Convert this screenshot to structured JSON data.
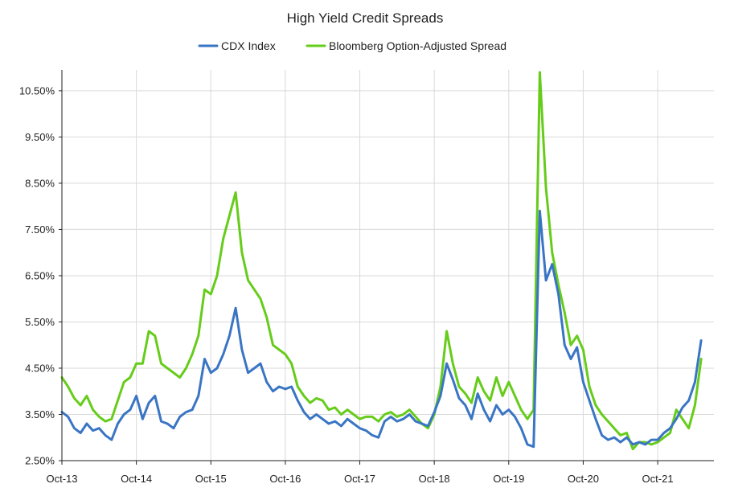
{
  "chart_data": {
    "type": "line",
    "title": "High Yield Credit Spreads",
    "xlabel": "",
    "ylabel": "",
    "ylim": [
      2.5,
      10.95
    ],
    "y_ticks": [
      2.5,
      3.5,
      4.5,
      5.5,
      6.5,
      7.5,
      8.5,
      9.5,
      10.5
    ],
    "y_tick_labels": [
      "2.50%",
      "3.50%",
      "4.50%",
      "5.50%",
      "6.50%",
      "7.50%",
      "8.50%",
      "9.50%",
      "10.50%"
    ],
    "x_tick_labels": [
      "Oct-13",
      "Oct-14",
      "Oct-15",
      "Oct-16",
      "Oct-17",
      "Oct-18",
      "Oct-19",
      "Oct-20",
      "Oct-21"
    ],
    "x_tick_dates": [
      "2013-10",
      "2014-10",
      "2015-10",
      "2016-10",
      "2017-10",
      "2018-10",
      "2019-10",
      "2020-10",
      "2021-10"
    ],
    "x_range": [
      "2013-10",
      "2022-05"
    ],
    "grid": true,
    "legend": "top",
    "series": [
      {
        "name": "CDX Index",
        "color": "#3a75c4",
        "points": [
          [
            "2013-10",
            3.55
          ],
          [
            "2013-11",
            3.45
          ],
          [
            "2013-12",
            3.2
          ],
          [
            "2014-01",
            3.1
          ],
          [
            "2014-02",
            3.3
          ],
          [
            "2014-03",
            3.15
          ],
          [
            "2014-04",
            3.2
          ],
          [
            "2014-05",
            3.05
          ],
          [
            "2014-06",
            2.95
          ],
          [
            "2014-07",
            3.3
          ],
          [
            "2014-08",
            3.5
          ],
          [
            "2014-09",
            3.6
          ],
          [
            "2014-10",
            3.9
          ],
          [
            "2014-11",
            3.4
          ],
          [
            "2014-12",
            3.75
          ],
          [
            "2015-01",
            3.9
          ],
          [
            "2015-02",
            3.35
          ],
          [
            "2015-03",
            3.3
          ],
          [
            "2015-04",
            3.2
          ],
          [
            "2015-05",
            3.45
          ],
          [
            "2015-06",
            3.55
          ],
          [
            "2015-07",
            3.6
          ],
          [
            "2015-08",
            3.9
          ],
          [
            "2015-09",
            4.7
          ],
          [
            "2015-10",
            4.4
          ],
          [
            "2015-11",
            4.5
          ],
          [
            "2015-12",
            4.8
          ],
          [
            "2016-01",
            5.2
          ],
          [
            "2016-02",
            5.8
          ],
          [
            "2016-03",
            4.9
          ],
          [
            "2016-04",
            4.4
          ],
          [
            "2016-05",
            4.5
          ],
          [
            "2016-06",
            4.6
          ],
          [
            "2016-07",
            4.2
          ],
          [
            "2016-08",
            4.0
          ],
          [
            "2016-09",
            4.1
          ],
          [
            "2016-10",
            4.05
          ],
          [
            "2016-11",
            4.1
          ],
          [
            "2016-12",
            3.8
          ],
          [
            "2017-01",
            3.55
          ],
          [
            "2017-02",
            3.4
          ],
          [
            "2017-03",
            3.5
          ],
          [
            "2017-04",
            3.4
          ],
          [
            "2017-05",
            3.3
          ],
          [
            "2017-06",
            3.35
          ],
          [
            "2017-07",
            3.25
          ],
          [
            "2017-08",
            3.4
          ],
          [
            "2017-09",
            3.3
          ],
          [
            "2017-10",
            3.2
          ],
          [
            "2017-11",
            3.15
          ],
          [
            "2017-12",
            3.05
          ],
          [
            "2018-01",
            3.0
          ],
          [
            "2018-02",
            3.35
          ],
          [
            "2018-03",
            3.45
          ],
          [
            "2018-04",
            3.35
          ],
          [
            "2018-05",
            3.4
          ],
          [
            "2018-06",
            3.5
          ],
          [
            "2018-07",
            3.35
          ],
          [
            "2018-08",
            3.3
          ],
          [
            "2018-09",
            3.25
          ],
          [
            "2018-10",
            3.55
          ],
          [
            "2018-11",
            3.9
          ],
          [
            "2018-12",
            4.6
          ],
          [
            "2019-01",
            4.25
          ],
          [
            "2019-02",
            3.85
          ],
          [
            "2019-03",
            3.7
          ],
          [
            "2019-04",
            3.4
          ],
          [
            "2019-05",
            3.95
          ],
          [
            "2019-06",
            3.6
          ],
          [
            "2019-07",
            3.35
          ],
          [
            "2019-08",
            3.7
          ],
          [
            "2019-09",
            3.5
          ],
          [
            "2019-10",
            3.6
          ],
          [
            "2019-11",
            3.45
          ],
          [
            "2019-12",
            3.2
          ],
          [
            "2020-01",
            2.85
          ],
          [
            "2020-02",
            2.8
          ],
          [
            "2020-03",
            7.9
          ],
          [
            "2020-04",
            6.4
          ],
          [
            "2020-05",
            6.75
          ],
          [
            "2020-06",
            6.1
          ],
          [
            "2020-07",
            5.0
          ],
          [
            "2020-08",
            4.7
          ],
          [
            "2020-09",
            4.95
          ],
          [
            "2020-10",
            4.2
          ],
          [
            "2020-11",
            3.8
          ],
          [
            "2020-12",
            3.4
          ],
          [
            "2021-01",
            3.05
          ],
          [
            "2021-02",
            2.95
          ],
          [
            "2021-03",
            3.0
          ],
          [
            "2021-04",
            2.9
          ],
          [
            "2021-05",
            3.0
          ],
          [
            "2021-06",
            2.85
          ],
          [
            "2021-07",
            2.9
          ],
          [
            "2021-08",
            2.85
          ],
          [
            "2021-09",
            2.95
          ],
          [
            "2021-10",
            2.95
          ],
          [
            "2021-11",
            3.1
          ],
          [
            "2021-12",
            3.2
          ],
          [
            "2022-01",
            3.4
          ],
          [
            "2022-02",
            3.65
          ],
          [
            "2022-03",
            3.8
          ],
          [
            "2022-04",
            4.2
          ],
          [
            "2022-05",
            5.1
          ]
        ]
      },
      {
        "name": "Bloomberg Option-Adjusted Spread",
        "color": "#66cc1a",
        "points": [
          [
            "2013-10",
            4.3
          ],
          [
            "2013-11",
            4.1
          ],
          [
            "2013-12",
            3.85
          ],
          [
            "2014-01",
            3.7
          ],
          [
            "2014-02",
            3.9
          ],
          [
            "2014-03",
            3.6
          ],
          [
            "2014-04",
            3.45
          ],
          [
            "2014-05",
            3.35
          ],
          [
            "2014-06",
            3.4
          ],
          [
            "2014-07",
            3.8
          ],
          [
            "2014-08",
            4.2
          ],
          [
            "2014-09",
            4.3
          ],
          [
            "2014-10",
            4.6
          ],
          [
            "2014-11",
            4.6
          ],
          [
            "2014-12",
            5.3
          ],
          [
            "2015-01",
            5.2
          ],
          [
            "2015-02",
            4.6
          ],
          [
            "2015-03",
            4.5
          ],
          [
            "2015-04",
            4.4
          ],
          [
            "2015-05",
            4.3
          ],
          [
            "2015-06",
            4.5
          ],
          [
            "2015-07",
            4.8
          ],
          [
            "2015-08",
            5.2
          ],
          [
            "2015-09",
            6.2
          ],
          [
            "2015-10",
            6.1
          ],
          [
            "2015-11",
            6.5
          ],
          [
            "2015-12",
            7.3
          ],
          [
            "2016-01",
            7.8
          ],
          [
            "2016-02",
            8.3
          ],
          [
            "2016-03",
            7.0
          ],
          [
            "2016-04",
            6.4
          ],
          [
            "2016-05",
            6.2
          ],
          [
            "2016-06",
            6.0
          ],
          [
            "2016-07",
            5.6
          ],
          [
            "2016-08",
            5.0
          ],
          [
            "2016-09",
            4.9
          ],
          [
            "2016-10",
            4.8
          ],
          [
            "2016-11",
            4.6
          ],
          [
            "2016-12",
            4.1
          ],
          [
            "2017-01",
            3.9
          ],
          [
            "2017-02",
            3.75
          ],
          [
            "2017-03",
            3.85
          ],
          [
            "2017-04",
            3.8
          ],
          [
            "2017-05",
            3.6
          ],
          [
            "2017-06",
            3.65
          ],
          [
            "2017-07",
            3.5
          ],
          [
            "2017-08",
            3.6
          ],
          [
            "2017-09",
            3.5
          ],
          [
            "2017-10",
            3.4
          ],
          [
            "2017-11",
            3.45
          ],
          [
            "2017-12",
            3.45
          ],
          [
            "2018-01",
            3.35
          ],
          [
            "2018-02",
            3.5
          ],
          [
            "2018-03",
            3.55
          ],
          [
            "2018-04",
            3.45
          ],
          [
            "2018-05",
            3.5
          ],
          [
            "2018-06",
            3.6
          ],
          [
            "2018-07",
            3.45
          ],
          [
            "2018-08",
            3.3
          ],
          [
            "2018-09",
            3.2
          ],
          [
            "2018-10",
            3.5
          ],
          [
            "2018-11",
            4.1
          ],
          [
            "2018-12",
            5.3
          ],
          [
            "2019-01",
            4.6
          ],
          [
            "2019-02",
            4.1
          ],
          [
            "2019-03",
            3.95
          ],
          [
            "2019-04",
            3.75
          ],
          [
            "2019-05",
            4.3
          ],
          [
            "2019-06",
            4.0
          ],
          [
            "2019-07",
            3.8
          ],
          [
            "2019-08",
            4.3
          ],
          [
            "2019-09",
            3.9
          ],
          [
            "2019-10",
            4.2
          ],
          [
            "2019-11",
            3.9
          ],
          [
            "2019-12",
            3.6
          ],
          [
            "2020-01",
            3.4
          ],
          [
            "2020-02",
            3.6
          ],
          [
            "2020-03",
            10.9
          ],
          [
            "2020-04",
            8.4
          ],
          [
            "2020-05",
            7.0
          ],
          [
            "2020-06",
            6.3
          ],
          [
            "2020-07",
            5.7
          ],
          [
            "2020-08",
            5.0
          ],
          [
            "2020-09",
            5.2
          ],
          [
            "2020-10",
            4.9
          ],
          [
            "2020-11",
            4.1
          ],
          [
            "2020-12",
            3.7
          ],
          [
            "2021-01",
            3.5
          ],
          [
            "2021-02",
            3.35
          ],
          [
            "2021-03",
            3.2
          ],
          [
            "2021-04",
            3.05
          ],
          [
            "2021-05",
            3.1
          ],
          [
            "2021-06",
            2.75
          ],
          [
            "2021-07",
            2.9
          ],
          [
            "2021-08",
            2.9
          ],
          [
            "2021-09",
            2.85
          ],
          [
            "2021-10",
            2.9
          ],
          [
            "2021-11",
            3.0
          ],
          [
            "2021-12",
            3.1
          ],
          [
            "2022-01",
            3.6
          ],
          [
            "2022-02",
            3.4
          ],
          [
            "2022-03",
            3.2
          ],
          [
            "2022-04",
            3.7
          ],
          [
            "2022-05",
            4.7
          ]
        ]
      }
    ]
  }
}
